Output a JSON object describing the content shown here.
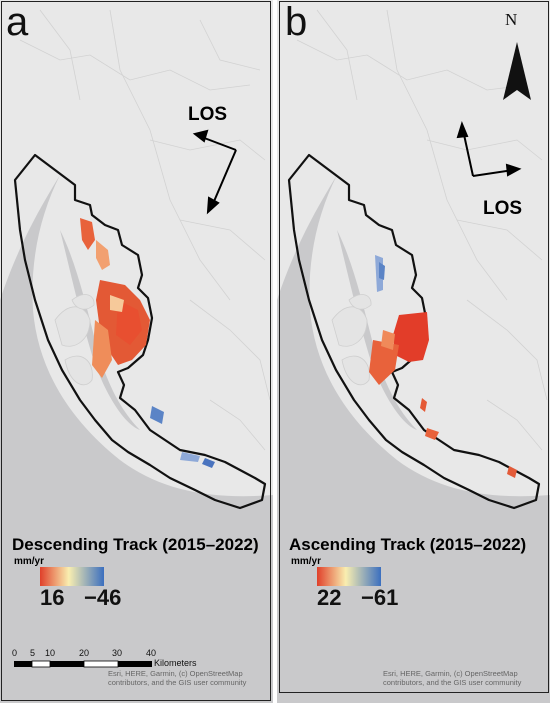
{
  "panels": [
    {
      "letter": "a",
      "los_label": "LOS",
      "legend_title": "Descending Track (2015–2022)",
      "unit": "mm/yr",
      "min": "16",
      "max": "−46",
      "attribution": "Esri, HERE, Garmin, (c) OpenStreetMap contributors, and the GIS user community"
    },
    {
      "letter": "b",
      "los_label": "LOS",
      "legend_title": "Ascending Track (2015–2022)",
      "unit": "mm/yr",
      "min": "22",
      "max": "−61",
      "attribution": "Esri, HERE, Garmin, (c) OpenStreetMap contributors, and the GIS user community"
    }
  ],
  "scale_bar": {
    "ticks": [
      "0",
      "5",
      "10",
      "20",
      "30",
      "40"
    ],
    "unit": "Kilometers"
  },
  "north_arrow": {
    "label": "N"
  },
  "colors": {
    "map_land": "#e8e8e8",
    "water": "#c9c9cb",
    "ramp_low": "#e0402a",
    "ramp_mid": "#f9eeb0",
    "ramp_high": "#3b6fbf"
  }
}
